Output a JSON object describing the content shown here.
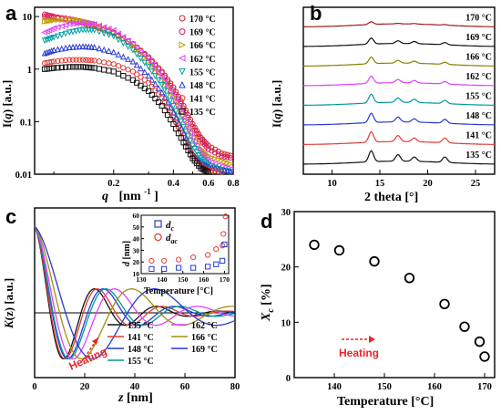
{
  "chart_data": [
    {
      "panel": "a",
      "type": "scatter",
      "xlabel": "q  [nm⁻¹]",
      "ylabel": "I(q)  [a.u.]",
      "xscale": "log",
      "yscale": "log",
      "xlim": [
        0.08,
        0.8
      ],
      "ylim": [
        0.01,
        15
      ],
      "xtick_labels": [
        "0.2",
        "0.4",
        "0.6",
        "0.8"
      ],
      "ytick_labels": [
        "0.01",
        "0.1",
        "1",
        "10"
      ],
      "legend_position": "top-right",
      "series": [
        {
          "name": "170 °C",
          "color": "#c62828",
          "marker": "circle",
          "x": [
            0.09,
            0.1,
            0.12,
            0.14,
            0.16,
            0.2,
            0.25,
            0.3,
            0.35,
            0.4,
            0.45,
            0.5,
            0.55,
            0.6,
            0.7,
            0.8
          ],
          "y": [
            10,
            9.5,
            8.5,
            7.5,
            6.5,
            4.8,
            3,
            1.7,
            0.9,
            0.45,
            0.2,
            0.09,
            0.05,
            0.035,
            0.025,
            0.022
          ]
        },
        {
          "name": "169 °C",
          "color": "#d81b60",
          "marker": "circle",
          "x": [
            0.09,
            0.1,
            0.12,
            0.14,
            0.16,
            0.2,
            0.25,
            0.3,
            0.35,
            0.4,
            0.45,
            0.5,
            0.55,
            0.6,
            0.7,
            0.8
          ],
          "y": [
            11,
            10,
            9,
            8,
            7,
            5,
            3,
            1.6,
            0.85,
            0.4,
            0.18,
            0.08,
            0.045,
            0.03,
            0.022,
            0.02
          ]
        },
        {
          "name": "166 °C",
          "color": "#c0a000",
          "marker": "triangle-right",
          "x": [
            0.09,
            0.1,
            0.12,
            0.14,
            0.16,
            0.2,
            0.25,
            0.3,
            0.35,
            0.4,
            0.45,
            0.5,
            0.55,
            0.6,
            0.7,
            0.8
          ],
          "y": [
            8,
            8.5,
            8.8,
            8.2,
            7,
            5,
            2.8,
            1.4,
            0.7,
            0.3,
            0.13,
            0.06,
            0.03,
            0.022,
            0.018,
            0.015
          ]
        },
        {
          "name": "162 °C",
          "color": "#e040fb",
          "marker": "triangle-left",
          "x": [
            0.09,
            0.1,
            0.12,
            0.14,
            0.16,
            0.2,
            0.25,
            0.3,
            0.35,
            0.4,
            0.45,
            0.5,
            0.55,
            0.6,
            0.7,
            0.8
          ],
          "y": [
            5,
            6,
            7.2,
            7.6,
            7.2,
            5.5,
            3,
            1.5,
            0.7,
            0.3,
            0.12,
            0.05,
            0.025,
            0.018,
            0.014,
            0.012
          ]
        },
        {
          "name": "155 °C",
          "color": "#00a0a0",
          "marker": "triangle-down",
          "x": [
            0.09,
            0.1,
            0.12,
            0.14,
            0.16,
            0.2,
            0.25,
            0.3,
            0.35,
            0.4,
            0.45,
            0.5,
            0.55,
            0.6,
            0.7,
            0.8
          ],
          "y": [
            3.5,
            4,
            5,
            5.6,
            5.5,
            4.2,
            2.3,
            1.1,
            0.5,
            0.2,
            0.08,
            0.035,
            0.02,
            0.015,
            0.012,
            0.011
          ]
        },
        {
          "name": "148 °C",
          "color": "#2a3ad0",
          "marker": "triangle-up",
          "x": [
            0.09,
            0.1,
            0.12,
            0.14,
            0.16,
            0.2,
            0.25,
            0.3,
            0.35,
            0.4,
            0.45,
            0.5,
            0.55,
            0.6,
            0.7,
            0.8
          ],
          "y": [
            2,
            2.3,
            2.6,
            2.7,
            2.6,
            2.1,
            1.4,
            0.75,
            0.36,
            0.15,
            0.06,
            0.025,
            0.016,
            0.014,
            0.012,
            0.011
          ]
        },
        {
          "name": "141 °C",
          "color": "#e53935",
          "marker": "circle",
          "x": [
            0.09,
            0.1,
            0.12,
            0.14,
            0.16,
            0.2,
            0.25,
            0.3,
            0.35,
            0.4,
            0.45,
            0.5,
            0.55,
            0.6,
            0.7,
            0.8
          ],
          "y": [
            1.3,
            1.4,
            1.5,
            1.5,
            1.45,
            1.25,
            0.9,
            0.55,
            0.28,
            0.12,
            0.05,
            0.022,
            0.014,
            0.012,
            0.011,
            0.01
          ]
        },
        {
          "name": "135 °C",
          "color": "#111111",
          "marker": "square",
          "x": [
            0.09,
            0.1,
            0.12,
            0.14,
            0.16,
            0.2,
            0.25,
            0.3,
            0.35,
            0.4,
            0.45,
            0.5,
            0.55,
            0.6,
            0.7,
            0.8
          ],
          "y": [
            1,
            1.05,
            1.1,
            1.1,
            1.05,
            0.9,
            0.62,
            0.38,
            0.2,
            0.09,
            0.04,
            0.02,
            0.013,
            0.011,
            0.01,
            0.01
          ]
        }
      ]
    },
    {
      "panel": "b",
      "type": "line",
      "xlabel": "2 theta  [°]",
      "ylabel": "I(q)  [a.u.]",
      "xlim": [
        7,
        27
      ],
      "xticks": [
        10,
        15,
        20,
        25
      ],
      "y_ticks_shown": false,
      "peaks_2theta": [
        14.1,
        16.9,
        18.6,
        21.8
      ],
      "series": [
        {
          "name": "170 °C",
          "color": "#9e1b1b",
          "offset": 7,
          "peak_heights": [
            0.25,
            0.05,
            0.05,
            0.05
          ]
        },
        {
          "name": "169 °C",
          "color": "#111111",
          "offset": 6,
          "peak_heights": [
            0.55,
            0.25,
            0.2,
            0.2
          ]
        },
        {
          "name": "166 °C",
          "color": "#8a8000",
          "offset": 5,
          "peak_heights": [
            0.6,
            0.25,
            0.2,
            0.2
          ]
        },
        {
          "name": "162 °C",
          "color": "#e040fb",
          "offset": 4,
          "peak_heights": [
            0.65,
            0.3,
            0.22,
            0.22
          ]
        },
        {
          "name": "155 °C",
          "color": "#009a9a",
          "offset": 3,
          "peak_heights": [
            0.8,
            0.4,
            0.3,
            0.3
          ]
        },
        {
          "name": "148 °C",
          "color": "#2a3ad0",
          "offset": 2,
          "peak_heights": [
            0.85,
            0.45,
            0.3,
            0.35
          ]
        },
        {
          "name": "141 °C",
          "color": "#e53935",
          "offset": 1,
          "peak_heights": [
            0.95,
            0.55,
            0.35,
            0.45
          ]
        },
        {
          "name": "135 °C",
          "color": "#111111",
          "offset": 0,
          "peak_heights": [
            1.0,
            0.6,
            0.4,
            0.5
          ]
        }
      ]
    },
    {
      "panel": "c",
      "type": "line",
      "xlabel": "z  [nm]",
      "ylabel": "K(z)  [a.u.]",
      "xlim": [
        0,
        80
      ],
      "xticks": [
        0,
        20,
        40,
        60,
        80
      ],
      "annotation": "Heating",
      "series": [
        {
          "name": "135 °C",
          "color": "#111111",
          "period": 21
        },
        {
          "name": "141 °C",
          "color": "#e53935",
          "period": 22
        },
        {
          "name": "148 °C",
          "color": "#2a3ad0",
          "period": 24
        },
        {
          "name": "155 °C",
          "color": "#009a9a",
          "period": 25
        },
        {
          "name": "162 °C",
          "color": "#e040fb",
          "period": 28
        },
        {
          "name": "166 °C",
          "color": "#a09010",
          "period": 34
        },
        {
          "name": "169 °C",
          "color": "#2a3ad0",
          "period": 42
        }
      ],
      "inset": {
        "type": "scatter",
        "xlabel": "Temperature  [°C]",
        "ylabel": "d  [nm]",
        "xlim": [
          130,
          172
        ],
        "ylim": [
          10,
          60
        ],
        "xticks": [
          130,
          140,
          150,
          160,
          170
        ],
        "yticks": [
          10,
          20,
          30,
          40,
          50,
          60
        ],
        "series": [
          {
            "name": "d_c",
            "color": "#2a3ad0",
            "marker": "square",
            "x": [
              135,
              141,
              148,
              155,
              162,
              166,
              169
            ],
            "y": [
              14,
              14,
              15,
              15,
              16,
              18,
              21
            ]
          },
          {
            "name": "d_ac",
            "color": "#e53935",
            "marker": "circle",
            "x": [
              135,
              141,
              148,
              155,
              162,
              166,
              169
            ],
            "y": [
              21,
              21,
              22,
              24,
              26,
              31,
              34
            ]
          }
        ],
        "extra_points": [
          {
            "series": "d_c",
            "x": 170,
            "y": 35
          },
          {
            "series": "d_ac",
            "x": 169.5,
            "y": 44
          },
          {
            "series": "d_ac",
            "x": 170.5,
            "y": 59
          }
        ]
      }
    },
    {
      "panel": "d",
      "type": "scatter",
      "xlabel": "Temperature  [°C]",
      "ylabel": "X_c  [%]",
      "xlim": [
        132,
        172
      ],
      "ylim": [
        0,
        30
      ],
      "xticks": [
        140,
        150,
        160,
        170
      ],
      "yticks": [
        0,
        10,
        20,
        30
      ],
      "annotation": "Heating",
      "x": [
        136,
        141,
        148,
        155,
        162,
        166,
        169,
        170
      ],
      "y": [
        24,
        23,
        21,
        18,
        13.3,
        9.2,
        6.5,
        3.8
      ]
    }
  ],
  "labels": {
    "panel_a": "a",
    "panel_b": "b",
    "panel_c": "c",
    "panel_d": "d",
    "a_xlabel_q": "q",
    "a_xlabel_unit": "[nm",
    "a_xlabel_exp": "-1",
    "a_xlabel_close": "]",
    "ylabel_I": "I(",
    "ylabel_q": "q",
    "ylabel_close": ")  [a.u.]",
    "b_xlabel": "2 theta  [°]",
    "c_xlabel_z": "z",
    "c_xlabel_unit": "  [nm]",
    "c_ylabel_K": "K",
    "c_ylabel_rest": "(z)  [a.u.]",
    "c_heating": "Heating",
    "inset_xlabel": "Temperature  [°C]",
    "inset_ylabel_d": "d",
    "inset_ylabel_unit": "  [nm]",
    "inset_leg_dc_d": "d",
    "inset_leg_dc_sub": "c",
    "inset_leg_dac_d": "d",
    "inset_leg_dac_sub": "ac",
    "d_xlabel": "Temperature  [°C]",
    "d_ylabel_X": "X",
    "d_ylabel_sub": "c",
    "d_ylabel_unit": "  [%]",
    "d_heating": "Heating"
  }
}
